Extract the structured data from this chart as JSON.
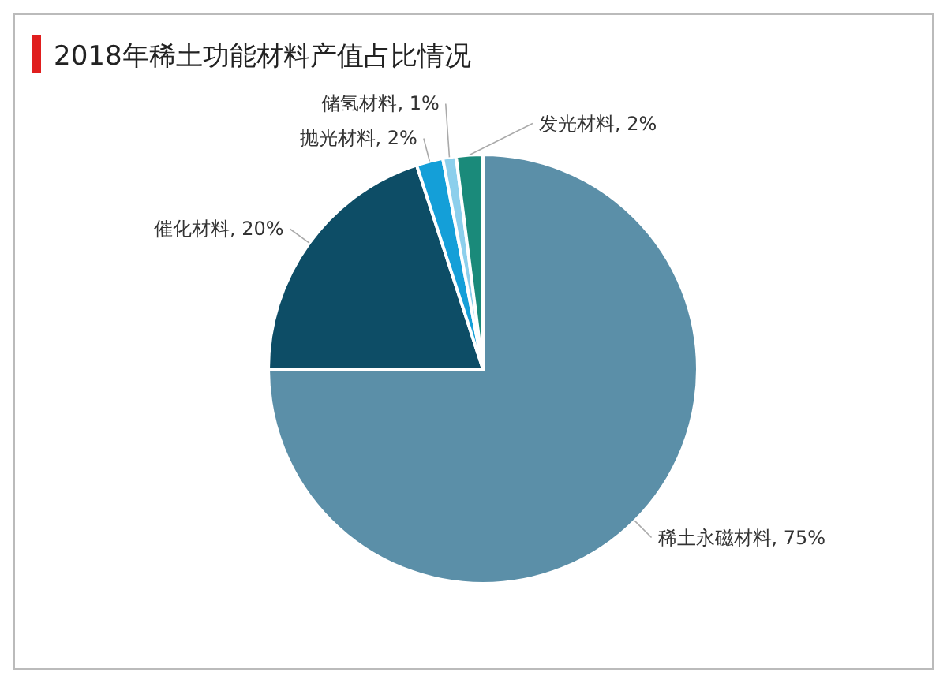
{
  "chart_data": {
    "type": "pie",
    "title": "2018年稀土功能材料产值占比情况",
    "categories": [
      "稀土永磁材料",
      "催化材料",
      "抛光材料",
      "储氢材料",
      "发光材料"
    ],
    "values": [
      75,
      20,
      2,
      1,
      2
    ],
    "value_labels": [
      "75%",
      "20%",
      "2%",
      "1%",
      "2%"
    ],
    "colors": [
      "#5b8fa8",
      "#0d4d66",
      "#149fd8",
      "#8ccfec",
      "#1a8a7a"
    ]
  }
}
